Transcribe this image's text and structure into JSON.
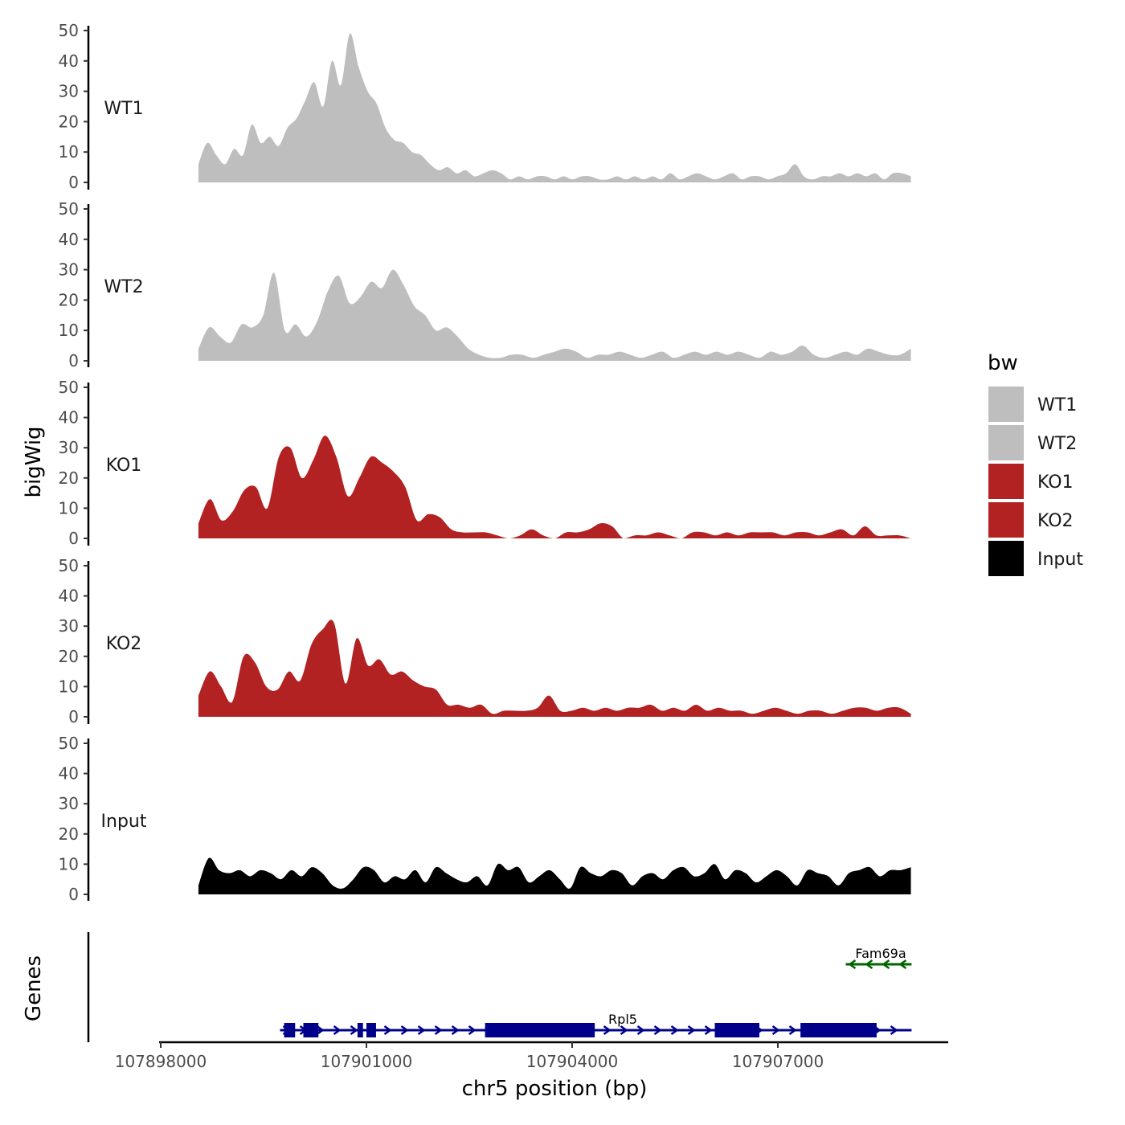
{
  "chart_data": {
    "type": "area",
    "ylabel": "bigWig",
    "xlabel": "chr5 position (bp)",
    "genes_label": "Genes",
    "ylim": [
      0,
      50
    ],
    "yticks": [
      0,
      10,
      20,
      30,
      40,
      50
    ],
    "xlim": [
      107897970,
      107909550
    ],
    "xticks": [
      107898000,
      107901000,
      107904000,
      107907000
    ],
    "xtick_labels": [
      "107898000",
      "107901000",
      "107904000",
      "107907000"
    ],
    "data_xrange": [
      107898550,
      107908940
    ],
    "legend": {
      "title": "bw",
      "position": "right",
      "entries": [
        {
          "label": "WT1",
          "color": "#bebebe"
        },
        {
          "label": "WT2",
          "color": "#bebebe"
        },
        {
          "label": "KO1",
          "color": "#b22222"
        },
        {
          "label": "KO2",
          "color": "#b22222"
        },
        {
          "label": "Input",
          "color": "#000000"
        }
      ]
    },
    "series": [
      {
        "name": "WT1",
        "color": "#bebebe",
        "values": [
          6,
          13,
          9,
          6,
          11,
          9,
          19,
          13,
          15,
          12,
          18,
          21,
          27,
          33,
          25,
          40,
          32,
          49,
          38,
          30,
          26,
          18,
          14,
          13,
          10,
          9,
          6,
          4,
          5,
          3,
          4,
          2,
          3,
          4,
          3,
          1,
          2,
          1,
          2,
          2,
          1,
          2,
          1,
          2,
          2,
          1,
          1,
          2,
          1,
          2,
          1,
          2,
          1,
          3,
          1,
          2,
          3,
          2,
          1,
          2,
          3,
          1,
          2,
          2,
          1,
          2,
          3,
          6,
          2,
          1,
          2,
          2,
          3,
          2,
          3,
          2,
          3,
          1,
          3,
          3,
          2
        ]
      },
      {
        "name": "WT2",
        "color": "#bebebe",
        "values": [
          4,
          11,
          8,
          6,
          12,
          11,
          15,
          29,
          10,
          12,
          8,
          13,
          23,
          28,
          19,
          21,
          26,
          24,
          30,
          25,
          18,
          15,
          10,
          11,
          8,
          4,
          2,
          1,
          1,
          2,
          2,
          1,
          2,
          3,
          4,
          3,
          1,
          2,
          2,
          3,
          2,
          1,
          2,
          3,
          1,
          2,
          3,
          2,
          3,
          2,
          3,
          2,
          1,
          3,
          2,
          3,
          5,
          2,
          1,
          2,
          3,
          2,
          4,
          3,
          2,
          2,
          4
        ]
      },
      {
        "name": "KO1",
        "color": "#b22222",
        "values": [
          5,
          13,
          6,
          9,
          16,
          17,
          10,
          27,
          30,
          20,
          26,
          34,
          27,
          14,
          20,
          27,
          25,
          22,
          17,
          6,
          8,
          7,
          3,
          2,
          2,
          2,
          1,
          0,
          1,
          3,
          1,
          0,
          2,
          2,
          3,
          5,
          4,
          0,
          1,
          1,
          2,
          1,
          0,
          2,
          2,
          1,
          2,
          1,
          2,
          2,
          2,
          1,
          2,
          2,
          1,
          2,
          3,
          1,
          4,
          1,
          1,
          1,
          0
        ]
      },
      {
        "name": "KO2",
        "color": "#b22222",
        "values": [
          7,
          15,
          10,
          5,
          20,
          18,
          10,
          9,
          15,
          12,
          24,
          29,
          31,
          11,
          26,
          17,
          19,
          14,
          15,
          12,
          10,
          9,
          4,
          4,
          3,
          4,
          1,
          2,
          2,
          2,
          3,
          7,
          2,
          2,
          3,
          2,
          3,
          2,
          3,
          3,
          4,
          2,
          3,
          2,
          4,
          2,
          3,
          2,
          2,
          1,
          2,
          3,
          2,
          1,
          2,
          2,
          1,
          2,
          3,
          3,
          2,
          3,
          3,
          1
        ]
      },
      {
        "name": "Input",
        "color": "#000000",
        "values": [
          3,
          12,
          8,
          7,
          8,
          6,
          8,
          7,
          5,
          8,
          6,
          9,
          7,
          3,
          2,
          5,
          9,
          8,
          4,
          6,
          5,
          8,
          4,
          9,
          7,
          5,
          4,
          6,
          3,
          10,
          8,
          9,
          4,
          6,
          8,
          5,
          2,
          9,
          7,
          6,
          8,
          7,
          3,
          6,
          7,
          5,
          8,
          9,
          6,
          7,
          10,
          5,
          8,
          7,
          4,
          6,
          8,
          6,
          3,
          8,
          7,
          6,
          3,
          7,
          8,
          9,
          6,
          8,
          8,
          9
        ]
      }
    ],
    "genes": [
      {
        "name": "Rpl5",
        "strand": "+",
        "color": "#00008b",
        "start": 107899740,
        "end": 107908950,
        "exons": [
          [
            107899800,
            107899960
          ],
          [
            107900080,
            107900300
          ],
          [
            107900870,
            107900950
          ],
          [
            107901000,
            107901140
          ],
          [
            107902730,
            107904330
          ],
          [
            107906080,
            107906730
          ],
          [
            107907330,
            107908440
          ]
        ]
      },
      {
        "name": "Fam69a",
        "strand": "-",
        "color": "#006400",
        "start": 107907990,
        "end": 107908950,
        "exons": []
      }
    ]
  }
}
